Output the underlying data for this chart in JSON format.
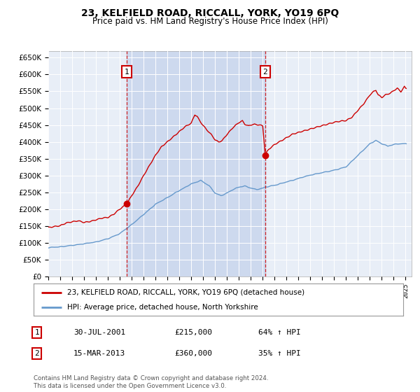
{
  "title": "23, KELFIELD ROAD, RICCALL, YORK, YO19 6PQ",
  "subtitle": "Price paid vs. HM Land Registry's House Price Index (HPI)",
  "title_fontsize": 10,
  "subtitle_fontsize": 8.5,
  "background_color": "#ffffff",
  "plot_background": "#e8eef7",
  "shade_color": "#cdd9ee",
  "grid_color": "#ffffff",
  "line1_color": "#cc0000",
  "line2_color": "#6699cc",
  "ylabel_ticks": [
    "£0",
    "£50K",
    "£100K",
    "£150K",
    "£200K",
    "£250K",
    "£300K",
    "£350K",
    "£400K",
    "£450K",
    "£500K",
    "£550K",
    "£600K",
    "£650K"
  ],
  "ytick_values": [
    0,
    50000,
    100000,
    150000,
    200000,
    250000,
    300000,
    350000,
    400000,
    450000,
    500000,
    550000,
    600000,
    650000
  ],
  "ylim": [
    0,
    670000
  ],
  "sale1_date": 2001.58,
  "sale1_price": 215000,
  "sale2_date": 2013.21,
  "sale2_price": 360000,
  "legend_line1": "23, KELFIELD ROAD, RICCALL, YORK, YO19 6PQ (detached house)",
  "legend_line2": "HPI: Average price, detached house, North Yorkshire",
  "table_row1": [
    "1",
    "30-JUL-2001",
    "£215,000",
    "64% ↑ HPI"
  ],
  "table_row2": [
    "2",
    "15-MAR-2013",
    "£360,000",
    "35% ↑ HPI"
  ],
  "footnote": "Contains HM Land Registry data © Crown copyright and database right 2024.\nThis data is licensed under the Open Government Licence v3.0.",
  "xmin": 1995.0,
  "xmax": 2025.5
}
